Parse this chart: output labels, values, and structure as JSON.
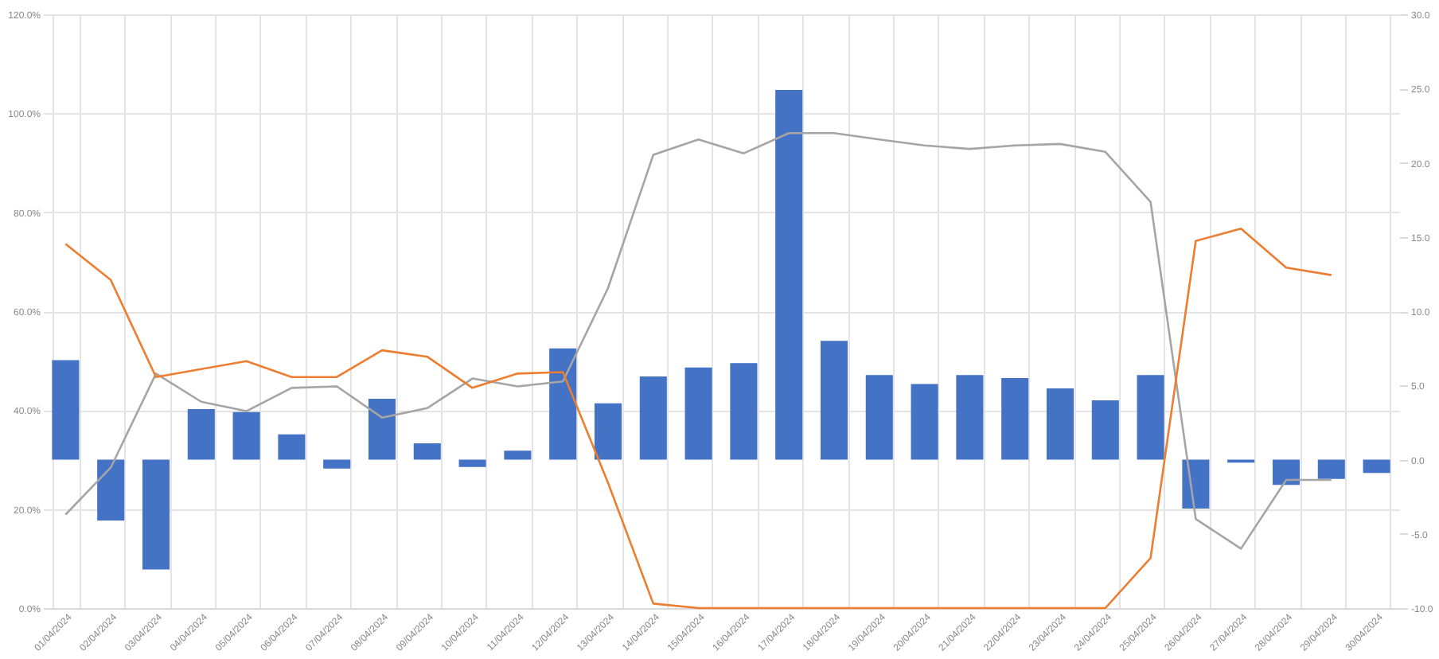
{
  "chart_data": {
    "type": "bar",
    "categories": [
      "01/04/2024",
      "02/04/2024",
      "03/04/2024",
      "04/04/2024",
      "05/04/2024",
      "06/04/2024",
      "07/04/2024",
      "08/04/2024",
      "09/04/2024",
      "10/04/2024",
      "11/04/2024",
      "12/04/2024",
      "13/04/2024",
      "14/04/2024",
      "15/04/2024",
      "16/04/2024",
      "17/04/2024",
      "18/04/2024",
      "19/04/2024",
      "20/04/2024",
      "21/04/2024",
      "22/04/2024",
      "23/04/2024",
      "24/04/2024",
      "25/04/2024",
      "26/04/2024",
      "27/04/2024",
      "28/04/2024",
      "29/04/2024",
      "30/04/2024"
    ],
    "series": [
      {
        "axis": "y2",
        "color": "#4472c4",
        "values": [
          6.7,
          -4.1,
          -7.4,
          3.4,
          3.2,
          1.7,
          -0.6,
          4.1,
          1.1,
          -0.5,
          0.6,
          7.5,
          3.8,
          5.6,
          6.2,
          6.5,
          24.9,
          8.0,
          5.7,
          5.1,
          5.7,
          5.5,
          4.8,
          4.0,
          5.7,
          -3.3,
          -0.2,
          -1.7,
          -1.3,
          -0.9
        ]
      },
      {
        "type": "line",
        "color": "#a5a5a5",
        "values": [
          18.9,
          28.4,
          47.4,
          41.7,
          39.8,
          44.5,
          44.8,
          38.5,
          40.4,
          46.4,
          44.8,
          45.8,
          64.7,
          91.6,
          94.7,
          91.9,
          96,
          96,
          94.7,
          93.5,
          92.8,
          93.5,
          93.8,
          92.2,
          82.1,
          18,
          12,
          25.9,
          25.9,
          null
        ]
      },
      {
        "type": "line",
        "color": "#ed7d31",
        "values": [
          73.6,
          66.3,
          46.7,
          48.3,
          49.9,
          46.7,
          46.7,
          52.1,
          50.8,
          44.5,
          47.4,
          47.7,
          25.3,
          0.9,
          0,
          0,
          0,
          0,
          0,
          0,
          0,
          0,
          0,
          0,
          10.1,
          74.2,
          76.7,
          68.8,
          67.3,
          null
        ]
      }
    ],
    "ylim": [
      0,
      120
    ],
    "yticks": [
      {
        "value": 0,
        "label": "0.0%"
      },
      {
        "value": 20,
        "label": "20.0%"
      },
      {
        "value": 40,
        "label": "40.0%"
      },
      {
        "value": 60,
        "label": "60.0%"
      },
      {
        "value": 80,
        "label": "80.0%"
      },
      {
        "value": 100,
        "label": "100.0%"
      },
      {
        "value": 120,
        "label": "120.0%"
      }
    ],
    "y2lim": [
      -10,
      30
    ],
    "y2ticks": [
      {
        "value": -10,
        "label": "-10.0"
      },
      {
        "value": -5,
        "label": "-5.0"
      },
      {
        "value": 0,
        "label": "0.0"
      },
      {
        "value": 5,
        "label": "5.0"
      },
      {
        "value": 10,
        "label": "10.0"
      },
      {
        "value": 15,
        "label": "15.0"
      },
      {
        "value": 20,
        "label": "20.0"
      },
      {
        "value": 25,
        "label": "25.0"
      },
      {
        "value": 30,
        "label": "30.0"
      }
    ],
    "grid": true
  }
}
